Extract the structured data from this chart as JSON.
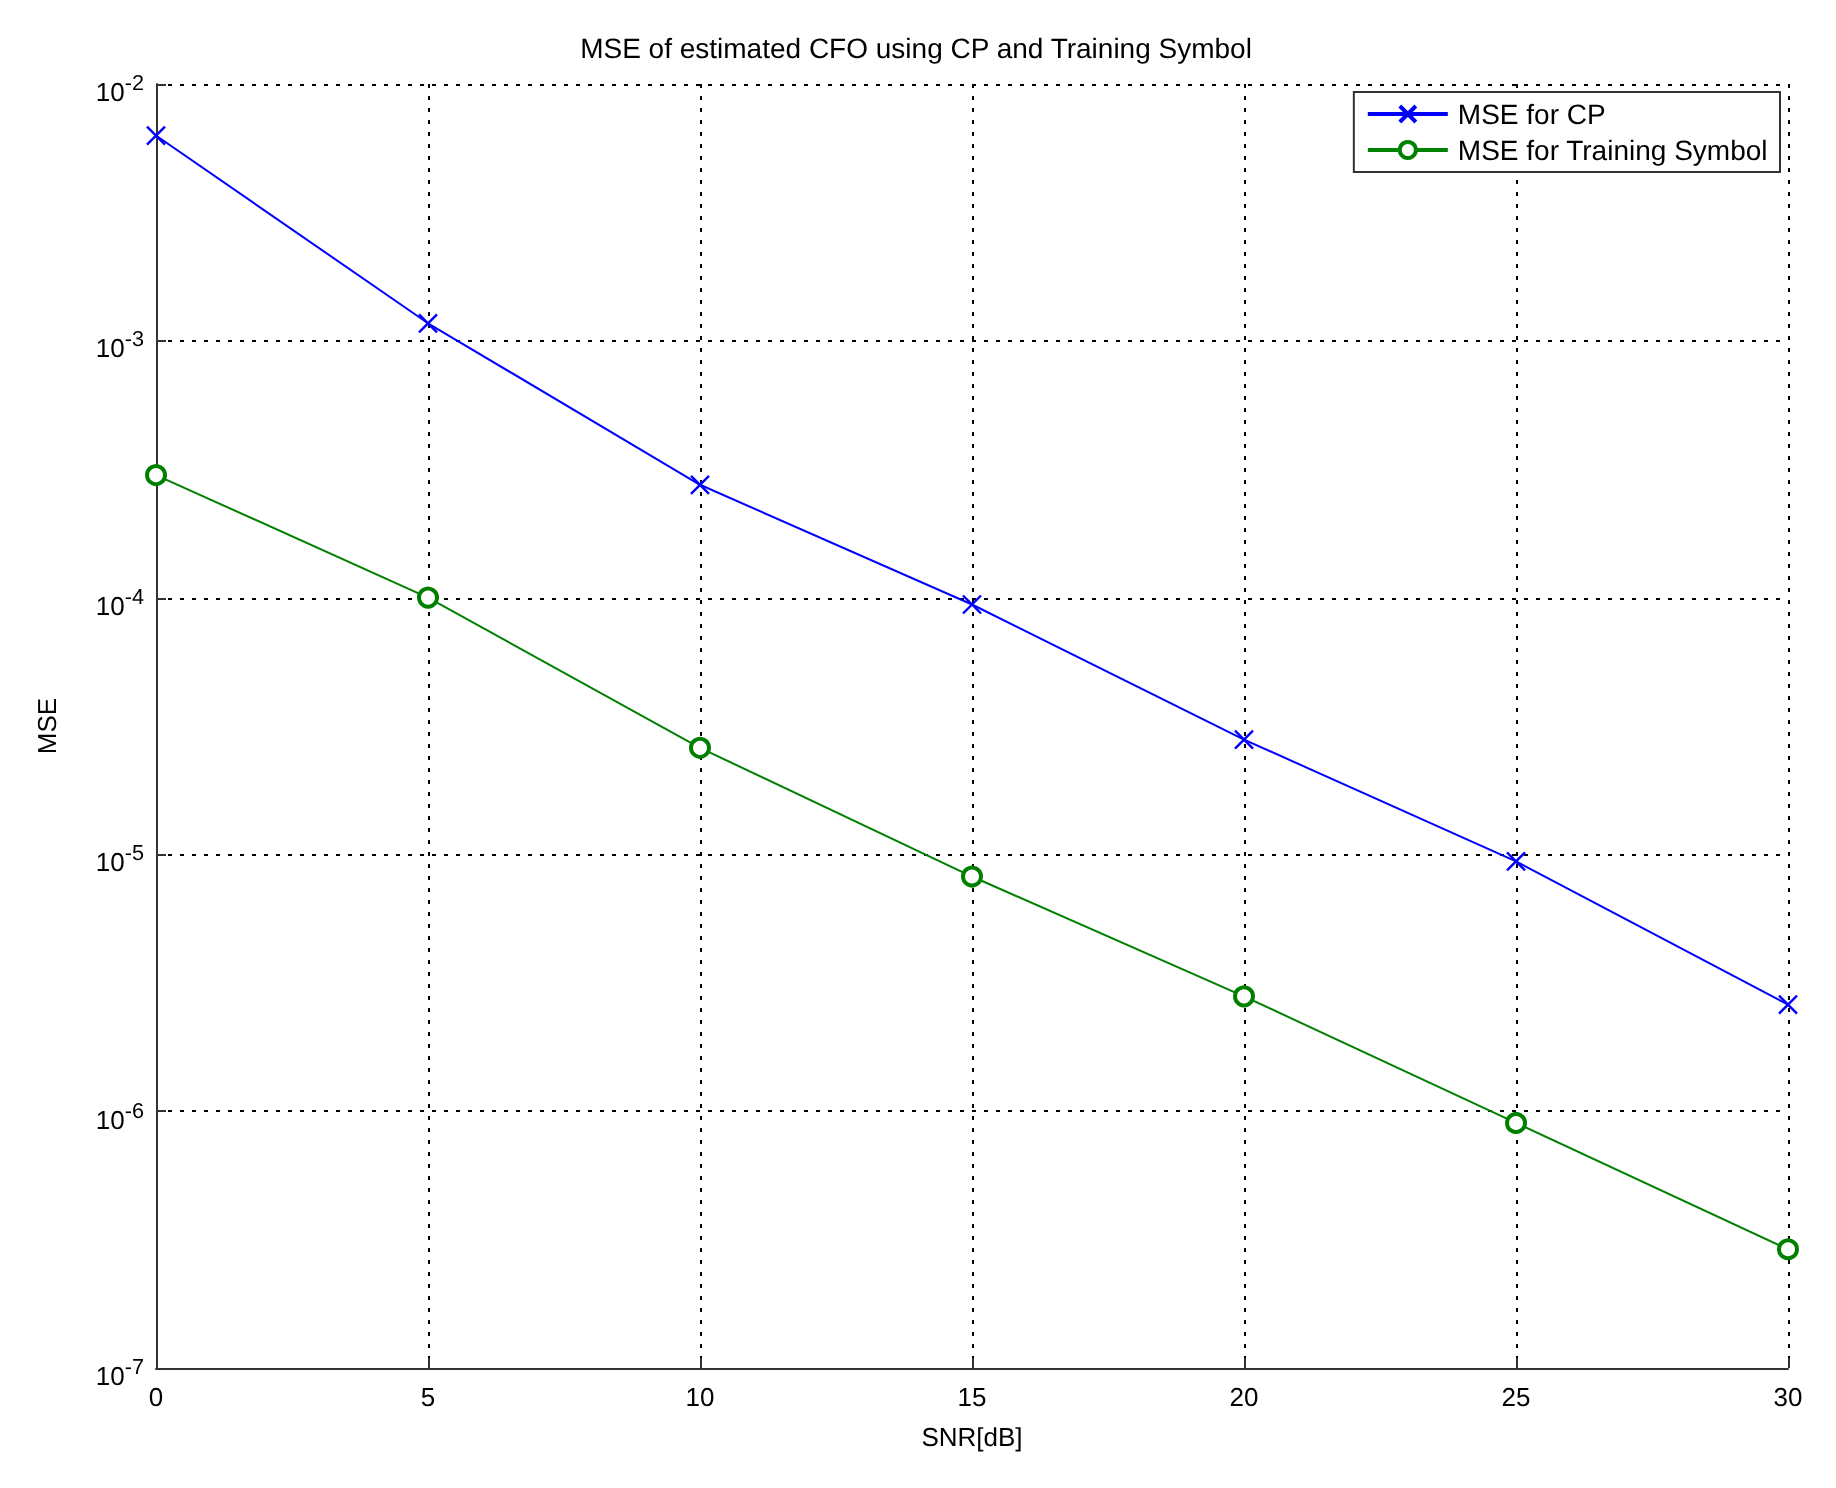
{
  "chart_data": {
    "type": "line",
    "title": "MSE of estimated CFO using CP and Training Symbol",
    "xlabel": "SNR[dB]",
    "ylabel": "MSE",
    "x": [
      0,
      5,
      10,
      15,
      20,
      25,
      30
    ],
    "series": [
      {
        "name": "MSE for CP",
        "color": "#0000ff",
        "marker": "cross",
        "values": [
          0.0063,
          0.00117,
          0.000275,
          9.4e-05,
          2.8e-05,
          9.4e-06,
          2.6e-06
        ]
      },
      {
        "name": "MSE for Training Symbol",
        "color": "#008000",
        "marker": "circle",
        "values": [
          0.0003,
          0.0001,
          2.6e-05,
          8.2e-06,
          2.8e-06,
          9e-07,
          2.9e-07
        ]
      }
    ],
    "log": "y",
    "xlim": [
      0,
      30
    ],
    "xticks": [
      0,
      5,
      10,
      15,
      20,
      25,
      30
    ],
    "ylim": [
      1e-07,
      0.01
    ],
    "yticks": [
      {
        "value": 1e-07,
        "label": "10$^{-7}$"
      },
      {
        "value": 1e-06,
        "label": "10$^{-6}$"
      },
      {
        "value": 1e-05,
        "label": "10$^{-5}$"
      },
      {
        "value": 0.0001,
        "label": "10$^{-4}$"
      },
      {
        "value": 0.001,
        "label": "10$^{-3}$"
      },
      {
        "value": 0.01,
        "label": "10$^{-2}$"
      }
    ],
    "grid": true,
    "legend": "top right",
    "line_style": "solid"
  }
}
